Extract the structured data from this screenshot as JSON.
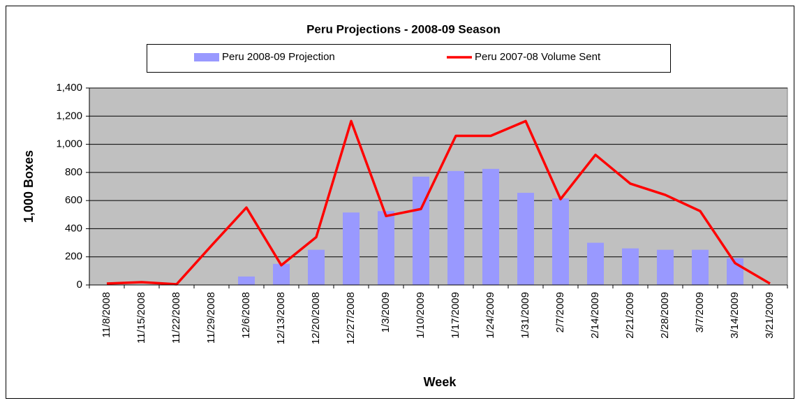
{
  "chart_data": {
    "type": "bar_line",
    "title": "Peru Projections - 2008-09 Season",
    "x_label": "Week",
    "y_label": "1,000 Boxes",
    "categories": [
      "11/8/2008",
      "11/15/2008",
      "11/22/2008",
      "11/29/2008",
      "12/6/2008",
      "12/13/2008",
      "12/20/2008",
      "12/27/2008",
      "1/3/2009",
      "1/10/2009",
      "1/17/2009",
      "1/24/2009",
      "1/31/2009",
      "2/7/2009",
      "2/14/2009",
      "2/21/2009",
      "2/28/2009",
      "3/7/2009",
      "3/14/2009",
      "3/21/2009"
    ],
    "series": [
      {
        "name": "Peru 2008-09 Projection",
        "type": "bar",
        "color": "#9999ff",
        "values": [
          null,
          null,
          null,
          null,
          60,
          150,
          250,
          515,
          525,
          770,
          810,
          825,
          655,
          615,
          300,
          260,
          250,
          250,
          190,
          null
        ]
      },
      {
        "name": "Peru 2007-08 Volume Sent",
        "type": "line",
        "color": "#ff0000",
        "values": [
          10,
          20,
          5,
          280,
          550,
          140,
          340,
          1165,
          490,
          540,
          1060,
          1060,
          1165,
          610,
          925,
          720,
          640,
          525,
          155,
          10
        ]
      }
    ],
    "ylim": [
      0,
      1400
    ],
    "yticks": [
      0,
      200,
      400,
      600,
      800,
      {
        "value": 1000,
        "label": "1,000"
      },
      {
        "value": 1200,
        "label": "1,200"
      },
      {
        "value": 1400,
        "label": "1,400"
      }
    ],
    "grid": true,
    "legend": "top",
    "plot_background": "#c0c0c0"
  }
}
